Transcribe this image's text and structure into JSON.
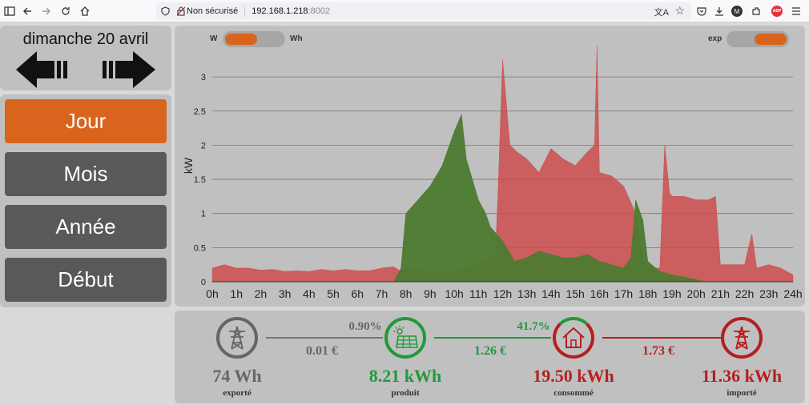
{
  "browser": {
    "security_label": "Non sécurisé",
    "url_host": "192.168.1.218",
    "url_port": ":8002",
    "icons": [
      "sidebar-icon",
      "back-icon",
      "forward-icon",
      "reload-icon",
      "home-icon",
      "shield-icon",
      "translate-icon",
      "bookmark-star-icon",
      "pocket-icon",
      "download-icon",
      "account-icon",
      "extensions-icon",
      "adblock-icon",
      "menu-icon"
    ],
    "profile_letter": "M",
    "adblock_label": "ABP"
  },
  "date": {
    "label": "dimanche 20 avril"
  },
  "menu": {
    "items": [
      {
        "label": "Jour",
        "active": true
      },
      {
        "label": "Mois",
        "active": false
      },
      {
        "label": "Année",
        "active": false
      },
      {
        "label": "Début",
        "active": false
      }
    ]
  },
  "toggles": {
    "unit_left": "W",
    "unit_right": "Wh",
    "exp_label": "exp"
  },
  "chart_data": {
    "type": "area",
    "ylabel": "kW",
    "xlabel": "",
    "ylim": [
      0,
      3.4
    ],
    "yticks": [
      0,
      0.5,
      1,
      1.5,
      2,
      2.5,
      3
    ],
    "ytick_labels": [
      "0",
      "0.5",
      "1",
      "1.5",
      "2",
      "2.5",
      "3"
    ],
    "xlim": [
      0,
      24
    ],
    "xticks": [
      0,
      1,
      2,
      3,
      4,
      5,
      6,
      7,
      8,
      9,
      10,
      11,
      12,
      13,
      14,
      15,
      16,
      17,
      18,
      19,
      20,
      21,
      22,
      23,
      24
    ],
    "xtick_labels": [
      "0h",
      "1h",
      "2h",
      "3h",
      "4h",
      "5h",
      "6h",
      "7h",
      "8h",
      "9h",
      "10h",
      "11h",
      "12h",
      "13h",
      "14h",
      "15h",
      "16h",
      "17h",
      "18h",
      "19h",
      "20h",
      "21h",
      "22h",
      "23h",
      "24h"
    ],
    "series": [
      {
        "name": "consommé",
        "color": "#cc4c4c",
        "x": [
          0,
          0.5,
          1,
          1.5,
          2,
          2.5,
          3,
          3.5,
          4,
          4.5,
          5,
          5.5,
          6,
          6.5,
          7,
          7.5,
          7.8,
          8,
          9,
          10,
          11,
          11.7,
          11.8,
          12,
          12.3,
          12.6,
          13,
          13.5,
          14,
          14.5,
          15,
          15.5,
          15.8,
          15.9,
          16,
          16.5,
          17,
          17.5,
          17.8,
          18,
          18.5,
          18.6,
          18.7,
          18.9,
          19,
          19.5,
          20,
          20.5,
          20.8,
          21,
          21.5,
          22,
          22.3,
          22.5,
          23,
          23.5,
          24
        ],
        "y": [
          0.2,
          0.25,
          0.2,
          0.2,
          0.17,
          0.18,
          0.15,
          0.16,
          0.15,
          0.18,
          0.16,
          0.18,
          0.16,
          0.16,
          0.2,
          0.22,
          0.15,
          0.2,
          0.15,
          0.15,
          0.25,
          0.4,
          1.2,
          3.25,
          2.0,
          1.9,
          1.8,
          1.6,
          1.95,
          1.8,
          1.7,
          1.9,
          2.0,
          3.45,
          1.6,
          1.55,
          1.4,
          1.0,
          0.3,
          0.2,
          0.2,
          1.1,
          2.0,
          1.3,
          1.25,
          1.25,
          1.2,
          1.2,
          1.25,
          0.25,
          0.25,
          0.25,
          0.7,
          0.2,
          0.25,
          0.2,
          0.1
        ]
      },
      {
        "name": "produit",
        "color": "#4c7a30",
        "x": [
          7.5,
          7.8,
          8,
          8.5,
          9,
          9.5,
          10,
          10.3,
          10.5,
          11,
          11.3,
          11.5,
          12,
          12.5,
          13,
          13.5,
          14,
          14.5,
          15,
          15.5,
          16,
          16.5,
          17,
          17.3,
          17.5,
          17.8,
          18,
          18.5,
          19,
          19.5,
          20,
          20.5
        ],
        "y": [
          0,
          0.2,
          1.0,
          1.2,
          1.4,
          1.7,
          2.2,
          2.45,
          1.8,
          1.2,
          1.0,
          0.8,
          0.6,
          0.3,
          0.35,
          0.45,
          0.4,
          0.35,
          0.35,
          0.4,
          0.3,
          0.25,
          0.2,
          0.35,
          1.2,
          0.9,
          0.3,
          0.15,
          0.1,
          0.07,
          0.03,
          0
        ]
      }
    ]
  },
  "stats": {
    "exporte": {
      "value": "74 Wh",
      "label": "exporté",
      "color": "#666666"
    },
    "produit": {
      "value": "8.21 kWh",
      "label": "produit",
      "color": "#1f9a3a"
    },
    "consomme": {
      "value": "19.50 kWh",
      "label": "consommé",
      "color": "#b51f1f"
    },
    "importe": {
      "value": "11.36 kWh",
      "label": "importé",
      "color": "#b51f1f"
    },
    "link_export_pct": "0.90%",
    "link_export_cost": "0.01 €",
    "link_self_pct": "41.7%",
    "link_self_cost": "1.26 €",
    "link_import_cost": "1.73 €"
  }
}
